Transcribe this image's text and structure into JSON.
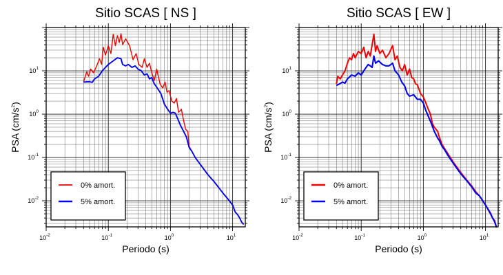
{
  "colors": {
    "series_0": "#ee0000",
    "series_5": "#0000ee",
    "grid": "#333333"
  },
  "chart_data": [
    {
      "type": "line",
      "title": "Sitio SCAS [ NS ]",
      "xlabel": "Periodo (s)",
      "ylabel_main": "PSA (cm/s",
      "ylabel_sup": "2",
      "ylabel_end": ")",
      "xscale": "log",
      "yscale": "log",
      "xlim": [
        0.01,
        16
      ],
      "ylim": [
        0.0025,
        100
      ],
      "grid": true,
      "legend_position": "bottom-left",
      "x_ticks": [
        {
          "v": 0.01,
          "base": "10",
          "exp": "-2"
        },
        {
          "v": 0.1,
          "base": "10",
          "exp": "-1"
        },
        {
          "v": 1,
          "base": "10",
          "exp": "0"
        },
        {
          "v": 10,
          "base": "10",
          "exp": "1"
        }
      ],
      "y_ticks": [
        {
          "v": 0.01,
          "base": "10",
          "exp": "-2"
        },
        {
          "v": 0.1,
          "base": "10",
          "exp": "-1"
        },
        {
          "v": 1,
          "base": "10",
          "exp": "0"
        },
        {
          "v": 10,
          "base": "10",
          "exp": "1"
        }
      ],
      "series": [
        {
          "name": "0% amort.",
          "color": "#ee0000",
          "points": [
            [
              0.04,
              5.6
            ],
            [
              0.045,
              9.5
            ],
            [
              0.048,
              7.5
            ],
            [
              0.052,
              11
            ],
            [
              0.058,
              9
            ],
            [
              0.065,
              13
            ],
            [
              0.072,
              19
            ],
            [
              0.078,
              14
            ],
            [
              0.083,
              35
            ],
            [
              0.09,
              23
            ],
            [
              0.1,
              38
            ],
            [
              0.11,
              25
            ],
            [
              0.12,
              70
            ],
            [
              0.13,
              38
            ],
            [
              0.14,
              65
            ],
            [
              0.15,
              45
            ],
            [
              0.16,
              72
            ],
            [
              0.17,
              40
            ],
            [
              0.19,
              55
            ],
            [
              0.22,
              38
            ],
            [
              0.25,
              18
            ],
            [
              0.28,
              25
            ],
            [
              0.31,
              14
            ],
            [
              0.35,
              12
            ],
            [
              0.38,
              19
            ],
            [
              0.42,
              12
            ],
            [
              0.46,
              15
            ],
            [
              0.5,
              9
            ],
            [
              0.55,
              6
            ],
            [
              0.6,
              11
            ],
            [
              0.68,
              5
            ],
            [
              0.75,
              4
            ],
            [
              0.82,
              5.5
            ],
            [
              0.88,
              3.2
            ],
            [
              0.95,
              3.5
            ],
            [
              1.05,
              2
            ],
            [
              1.15,
              1.8
            ],
            [
              1.25,
              2.3
            ],
            [
              1.35,
              1.1
            ],
            [
              1.5,
              1.3
            ],
            [
              1.6,
              0.8
            ],
            [
              1.75,
              0.45
            ],
            [
              1.9,
              0.4
            ],
            [
              2.0,
              0.18
            ],
            [
              2.2,
              0.14
            ],
            [
              2.5,
              0.1
            ],
            [
              3,
              0.07
            ],
            [
              4,
              0.04
            ],
            [
              5,
              0.028
            ],
            [
              6,
              0.02
            ],
            [
              7,
              0.015
            ],
            [
              8,
              0.012
            ],
            [
              10,
              0.008
            ],
            [
              11,
              0.0055
            ],
            [
              12,
              0.0048
            ],
            [
              13,
              0.004
            ],
            [
              14,
              0.0032
            ],
            [
              15,
              0.0028
            ]
          ]
        },
        {
          "name": "5% amort.",
          "color": "#0000ee",
          "points": [
            [
              0.04,
              5.5
            ],
            [
              0.05,
              5.6
            ],
            [
              0.055,
              5.4
            ],
            [
              0.06,
              6.5
            ],
            [
              0.07,
              7.5
            ],
            [
              0.08,
              10
            ],
            [
              0.09,
              12
            ],
            [
              0.1,
              14
            ],
            [
              0.12,
              17
            ],
            [
              0.14,
              20
            ],
            [
              0.16,
              19
            ],
            [
              0.17,
              14
            ],
            [
              0.19,
              13
            ],
            [
              0.21,
              14
            ],
            [
              0.24,
              12
            ],
            [
              0.27,
              13
            ],
            [
              0.3,
              11
            ],
            [
              0.34,
              10
            ],
            [
              0.38,
              8
            ],
            [
              0.42,
              8.5
            ],
            [
              0.46,
              6.5
            ],
            [
              0.5,
              7
            ],
            [
              0.55,
              5
            ],
            [
              0.6,
              4.2
            ],
            [
              0.7,
              3
            ],
            [
              0.8,
              1.7
            ],
            [
              0.9,
              1.3
            ],
            [
              1.0,
              1.05
            ],
            [
              1.1,
              1.1
            ],
            [
              1.2,
              1.05
            ],
            [
              1.3,
              0.8
            ],
            [
              1.45,
              0.55
            ],
            [
              1.6,
              0.42
            ],
            [
              1.8,
              0.3
            ],
            [
              2,
              0.17
            ],
            [
              2.2,
              0.14
            ],
            [
              2.5,
              0.1
            ],
            [
              3,
              0.07
            ],
            [
              4,
              0.04
            ],
            [
              5,
              0.028
            ],
            [
              6,
              0.02
            ],
            [
              7,
              0.015
            ],
            [
              8,
              0.012
            ],
            [
              10,
              0.008
            ],
            [
              11,
              0.0055
            ],
            [
              12,
              0.0048
            ],
            [
              13,
              0.004
            ],
            [
              14,
              0.0032
            ],
            [
              15,
              0.0029
            ]
          ]
        }
      ]
    },
    {
      "type": "line",
      "title": "Sitio SCAS [ EW ]",
      "xlabel": "Periodo (s)",
      "ylabel_main": "PSA (cm/s",
      "ylabel_sup": "2",
      "ylabel_end": ")",
      "xscale": "log",
      "yscale": "log",
      "xlim": [
        0.01,
        16
      ],
      "ylim": [
        0.0025,
        100
      ],
      "grid": true,
      "legend_position": "bottom-left",
      "x_ticks": [
        {
          "v": 0.01,
          "base": "10",
          "exp": "-2"
        },
        {
          "v": 0.1,
          "base": "10",
          "exp": "-1"
        },
        {
          "v": 1,
          "base": "10",
          "exp": "0"
        },
        {
          "v": 10,
          "base": "10",
          "exp": "1"
        }
      ],
      "y_ticks": [
        {
          "v": 0.01,
          "base": "10",
          "exp": "-2"
        },
        {
          "v": 0.1,
          "base": "10",
          "exp": "-1"
        },
        {
          "v": 1,
          "base": "10",
          "exp": "0"
        },
        {
          "v": 10,
          "base": "10",
          "exp": "1"
        }
      ],
      "series": [
        {
          "name": "0% amort.",
          "color": "#ee0000",
          "points": [
            [
              0.04,
              5
            ],
            [
              0.042,
              7.5
            ],
            [
              0.046,
              6.5
            ],
            [
              0.05,
              8
            ],
            [
              0.055,
              10
            ],
            [
              0.06,
              15
            ],
            [
              0.065,
              20
            ],
            [
              0.07,
              18
            ],
            [
              0.075,
              25
            ],
            [
              0.08,
              20
            ],
            [
              0.09,
              28
            ],
            [
              0.1,
              25
            ],
            [
              0.11,
              35
            ],
            [
              0.12,
              20
            ],
            [
              0.13,
              28
            ],
            [
              0.14,
              22
            ],
            [
              0.15,
              40
            ],
            [
              0.16,
              70
            ],
            [
              0.17,
              28
            ],
            [
              0.18,
              38
            ],
            [
              0.2,
              25
            ],
            [
              0.22,
              30
            ],
            [
              0.25,
              20
            ],
            [
              0.28,
              25
            ],
            [
              0.32,
              38
            ],
            [
              0.35,
              18
            ],
            [
              0.38,
              22
            ],
            [
              0.42,
              12
            ],
            [
              0.46,
              10
            ],
            [
              0.5,
              14
            ],
            [
              0.55,
              8
            ],
            [
              0.6,
              11
            ],
            [
              0.65,
              7
            ],
            [
              0.7,
              6.5
            ],
            [
              0.75,
              5
            ],
            [
              0.8,
              4.8
            ],
            [
              0.9,
              3
            ],
            [
              1.0,
              2.5
            ],
            [
              1.1,
              1.8
            ],
            [
              1.2,
              1.3
            ],
            [
              1.3,
              1.0
            ],
            [
              1.4,
              0.6
            ],
            [
              1.5,
              0.5
            ],
            [
              1.7,
              0.4
            ],
            [
              1.8,
              0.3
            ],
            [
              2,
              0.2
            ],
            [
              2.2,
              0.16
            ],
            [
              2.5,
              0.12
            ],
            [
              3,
              0.08
            ],
            [
              4,
              0.045
            ],
            [
              5,
              0.03
            ],
            [
              6,
              0.022
            ],
            [
              7,
              0.016
            ],
            [
              8,
              0.013
            ],
            [
              10,
              0.008
            ],
            [
              12,
              0.005
            ],
            [
              13,
              0.004
            ],
            [
              14,
              0.0035
            ],
            [
              15,
              0.0024
            ]
          ]
        },
        {
          "name": "5% amort.",
          "color": "#0000ee",
          "points": [
            [
              0.04,
              4.6
            ],
            [
              0.045,
              5
            ],
            [
              0.05,
              5.5
            ],
            [
              0.055,
              5.2
            ],
            [
              0.06,
              6.5
            ],
            [
              0.07,
              8
            ],
            [
              0.08,
              7.5
            ],
            [
              0.09,
              9
            ],
            [
              0.1,
              8
            ],
            [
              0.11,
              10
            ],
            [
              0.12,
              12
            ],
            [
              0.13,
              14
            ],
            [
              0.14,
              13
            ],
            [
              0.15,
              12
            ],
            [
              0.16,
              22
            ],
            [
              0.17,
              15
            ],
            [
              0.19,
              17
            ],
            [
              0.22,
              14
            ],
            [
              0.25,
              13
            ],
            [
              0.28,
              13
            ],
            [
              0.32,
              15
            ],
            [
              0.35,
              10
            ],
            [
              0.4,
              8
            ],
            [
              0.45,
              5.5
            ],
            [
              0.5,
              4.5
            ],
            [
              0.55,
              3
            ],
            [
              0.6,
              2.6
            ],
            [
              0.7,
              2.8
            ],
            [
              0.8,
              2.2
            ],
            [
              0.9,
              2.2
            ],
            [
              1.0,
              1.8
            ],
            [
              1.1,
              1.2
            ],
            [
              1.2,
              0.9
            ],
            [
              1.35,
              0.6
            ],
            [
              1.5,
              0.4
            ],
            [
              1.7,
              0.28
            ],
            [
              1.8,
              0.25
            ],
            [
              2,
              0.18
            ],
            [
              2.2,
              0.15
            ],
            [
              2.5,
              0.11
            ],
            [
              3,
              0.075
            ],
            [
              4,
              0.042
            ],
            [
              5,
              0.029
            ],
            [
              6,
              0.021
            ],
            [
              7,
              0.015
            ],
            [
              8,
              0.013
            ],
            [
              10,
              0.008
            ],
            [
              12,
              0.0052
            ],
            [
              13,
              0.004
            ],
            [
              14,
              0.0033
            ],
            [
              15,
              0.0025
            ]
          ]
        }
      ]
    }
  ]
}
